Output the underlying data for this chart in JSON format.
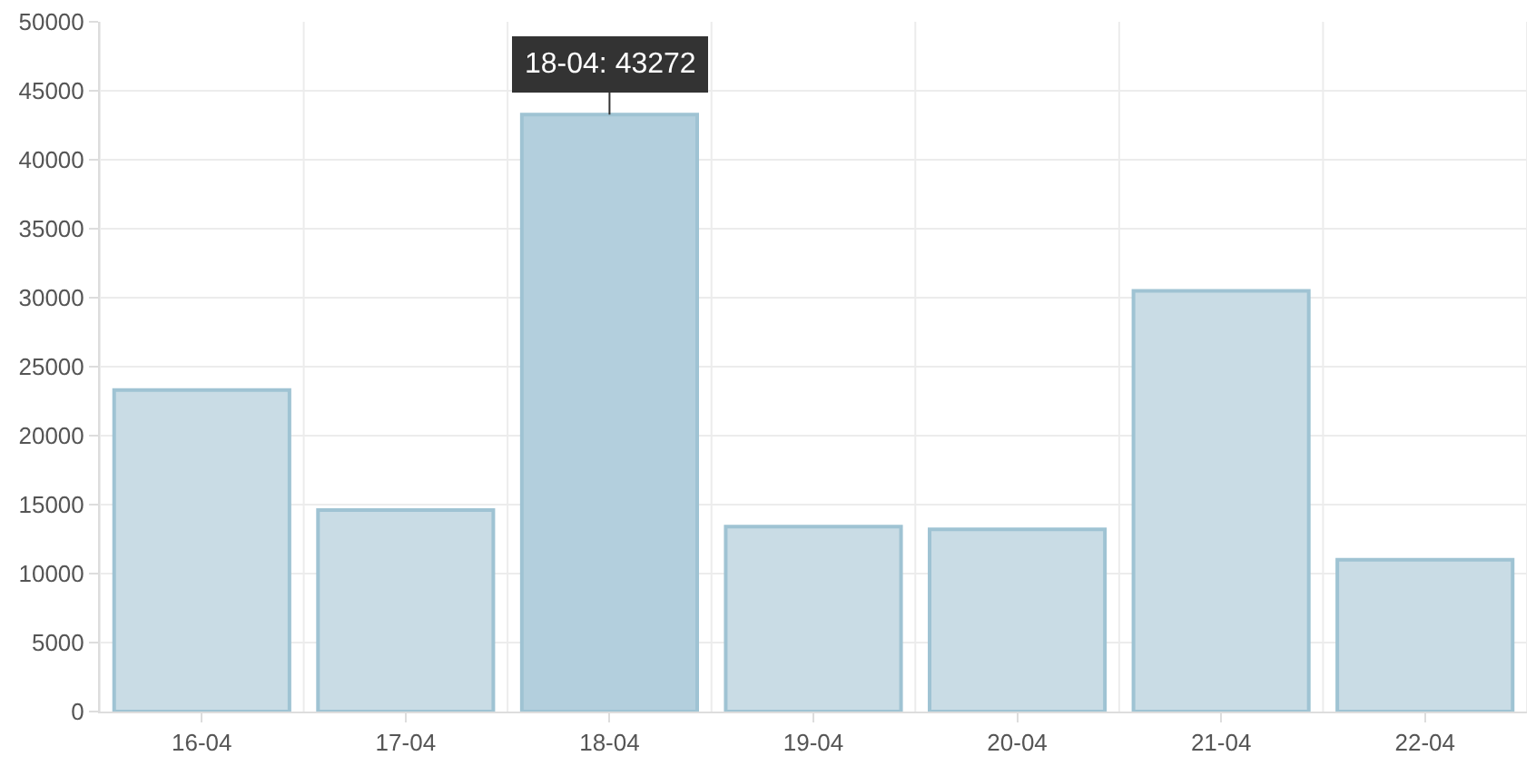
{
  "chart_data": {
    "type": "bar",
    "categories": [
      "16-04",
      "17-04",
      "18-04",
      "19-04",
      "20-04",
      "21-04",
      "22-04"
    ],
    "values": [
      23300,
      14600,
      43272,
      13400,
      13200,
      30500,
      11000
    ],
    "colors": [
      "#c9dce5",
      "#c9dce5",
      "#b3cfdd",
      "#c9dce5",
      "#c9dce5",
      "#c9dce5",
      "#c9dce5"
    ],
    "ylim": [
      0,
      50000
    ],
    "yticks": [
      0,
      5000,
      10000,
      15000,
      20000,
      25000,
      30000,
      35000,
      40000,
      45000,
      50000
    ],
    "grid": true,
    "annotations": [
      {
        "text": "18-04: 43272",
        "x": "18-04",
        "y": 43272
      }
    ]
  }
}
